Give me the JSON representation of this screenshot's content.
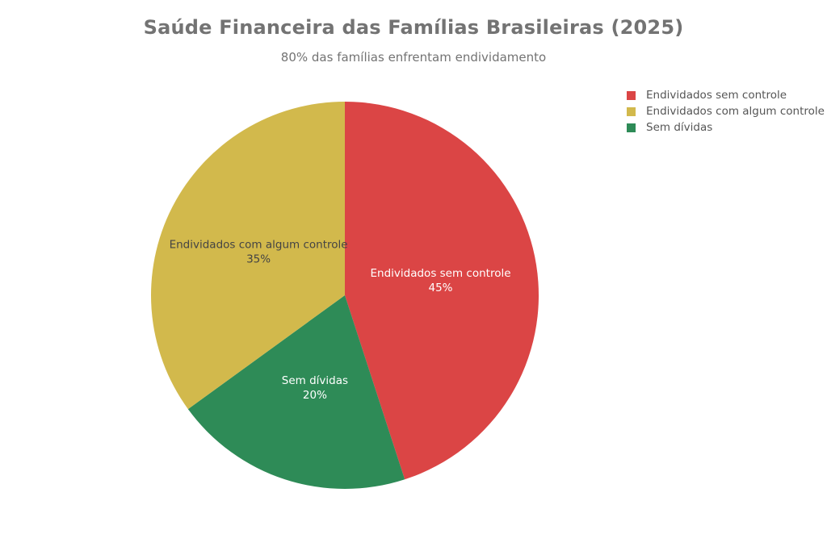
{
  "chart_data": {
    "type": "pie",
    "title": "Saúde Financeira das Famílias Brasileiras (2025)",
    "subtitle": "80% das famílias enfrentam endividamento",
    "slices": [
      {
        "label": "Endividados sem controle",
        "value": 45,
        "value_label": "45%",
        "color": "#db4545",
        "label_color": "#ffffff"
      },
      {
        "label": "Sem dívidas",
        "value": 20,
        "value_label": "20%",
        "color": "#2e8b57",
        "label_color": "#ffffff"
      },
      {
        "label": "Endividados com algum controle",
        "value": 35,
        "value_label": "35%",
        "color": "#d2b94c",
        "label_color": "#444444"
      }
    ],
    "legend": {
      "position": "top-right",
      "entries": [
        {
          "label": "Endividados sem controle",
          "color": "#db4545"
        },
        {
          "label": "Endividados com algum controle",
          "color": "#d2b94c"
        },
        {
          "label": "Sem dívidas",
          "color": "#2e8b57"
        }
      ]
    }
  }
}
